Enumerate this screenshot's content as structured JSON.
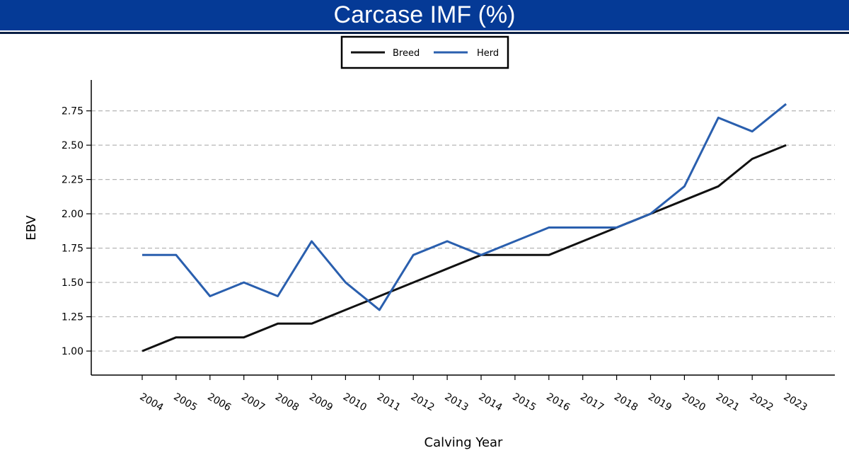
{
  "chart_data": {
    "type": "line",
    "title": "Carcase IMF (%)",
    "xlabel": "Calving Year",
    "ylabel": "EBV",
    "x": [
      "2004",
      "2005",
      "2006",
      "2007",
      "2008",
      "2009",
      "2010",
      "2011",
      "2012",
      "2013",
      "2014",
      "2015",
      "2016",
      "2017",
      "2018",
      "2019",
      "2020",
      "2021",
      "2022",
      "2023"
    ],
    "series": [
      {
        "name": "Breed",
        "color": "#111111",
        "values": [
          1.0,
          1.1,
          1.1,
          1.1,
          1.2,
          1.2,
          1.3,
          1.4,
          1.5,
          1.6,
          1.7,
          1.7,
          1.7,
          1.8,
          1.9,
          2.0,
          2.1,
          2.2,
          2.4,
          2.5
        ]
      },
      {
        "name": "Herd",
        "color": "#2a5fae",
        "values": [
          1.7,
          1.7,
          1.4,
          1.5,
          1.4,
          1.8,
          1.5,
          1.3,
          1.7,
          1.8,
          1.7,
          1.8,
          1.9,
          1.9,
          1.9,
          2.0,
          2.2,
          2.7,
          2.6,
          2.8
        ]
      }
    ],
    "yticks": [
      "1.00",
      "1.25",
      "1.50",
      "1.75",
      "2.00",
      "2.25",
      "2.50",
      "2.75"
    ],
    "ylim": [
      0.825,
      2.975
    ],
    "grid": "horizontal dashed",
    "legend": "top-center",
    "banner_color": "#053a96"
  }
}
